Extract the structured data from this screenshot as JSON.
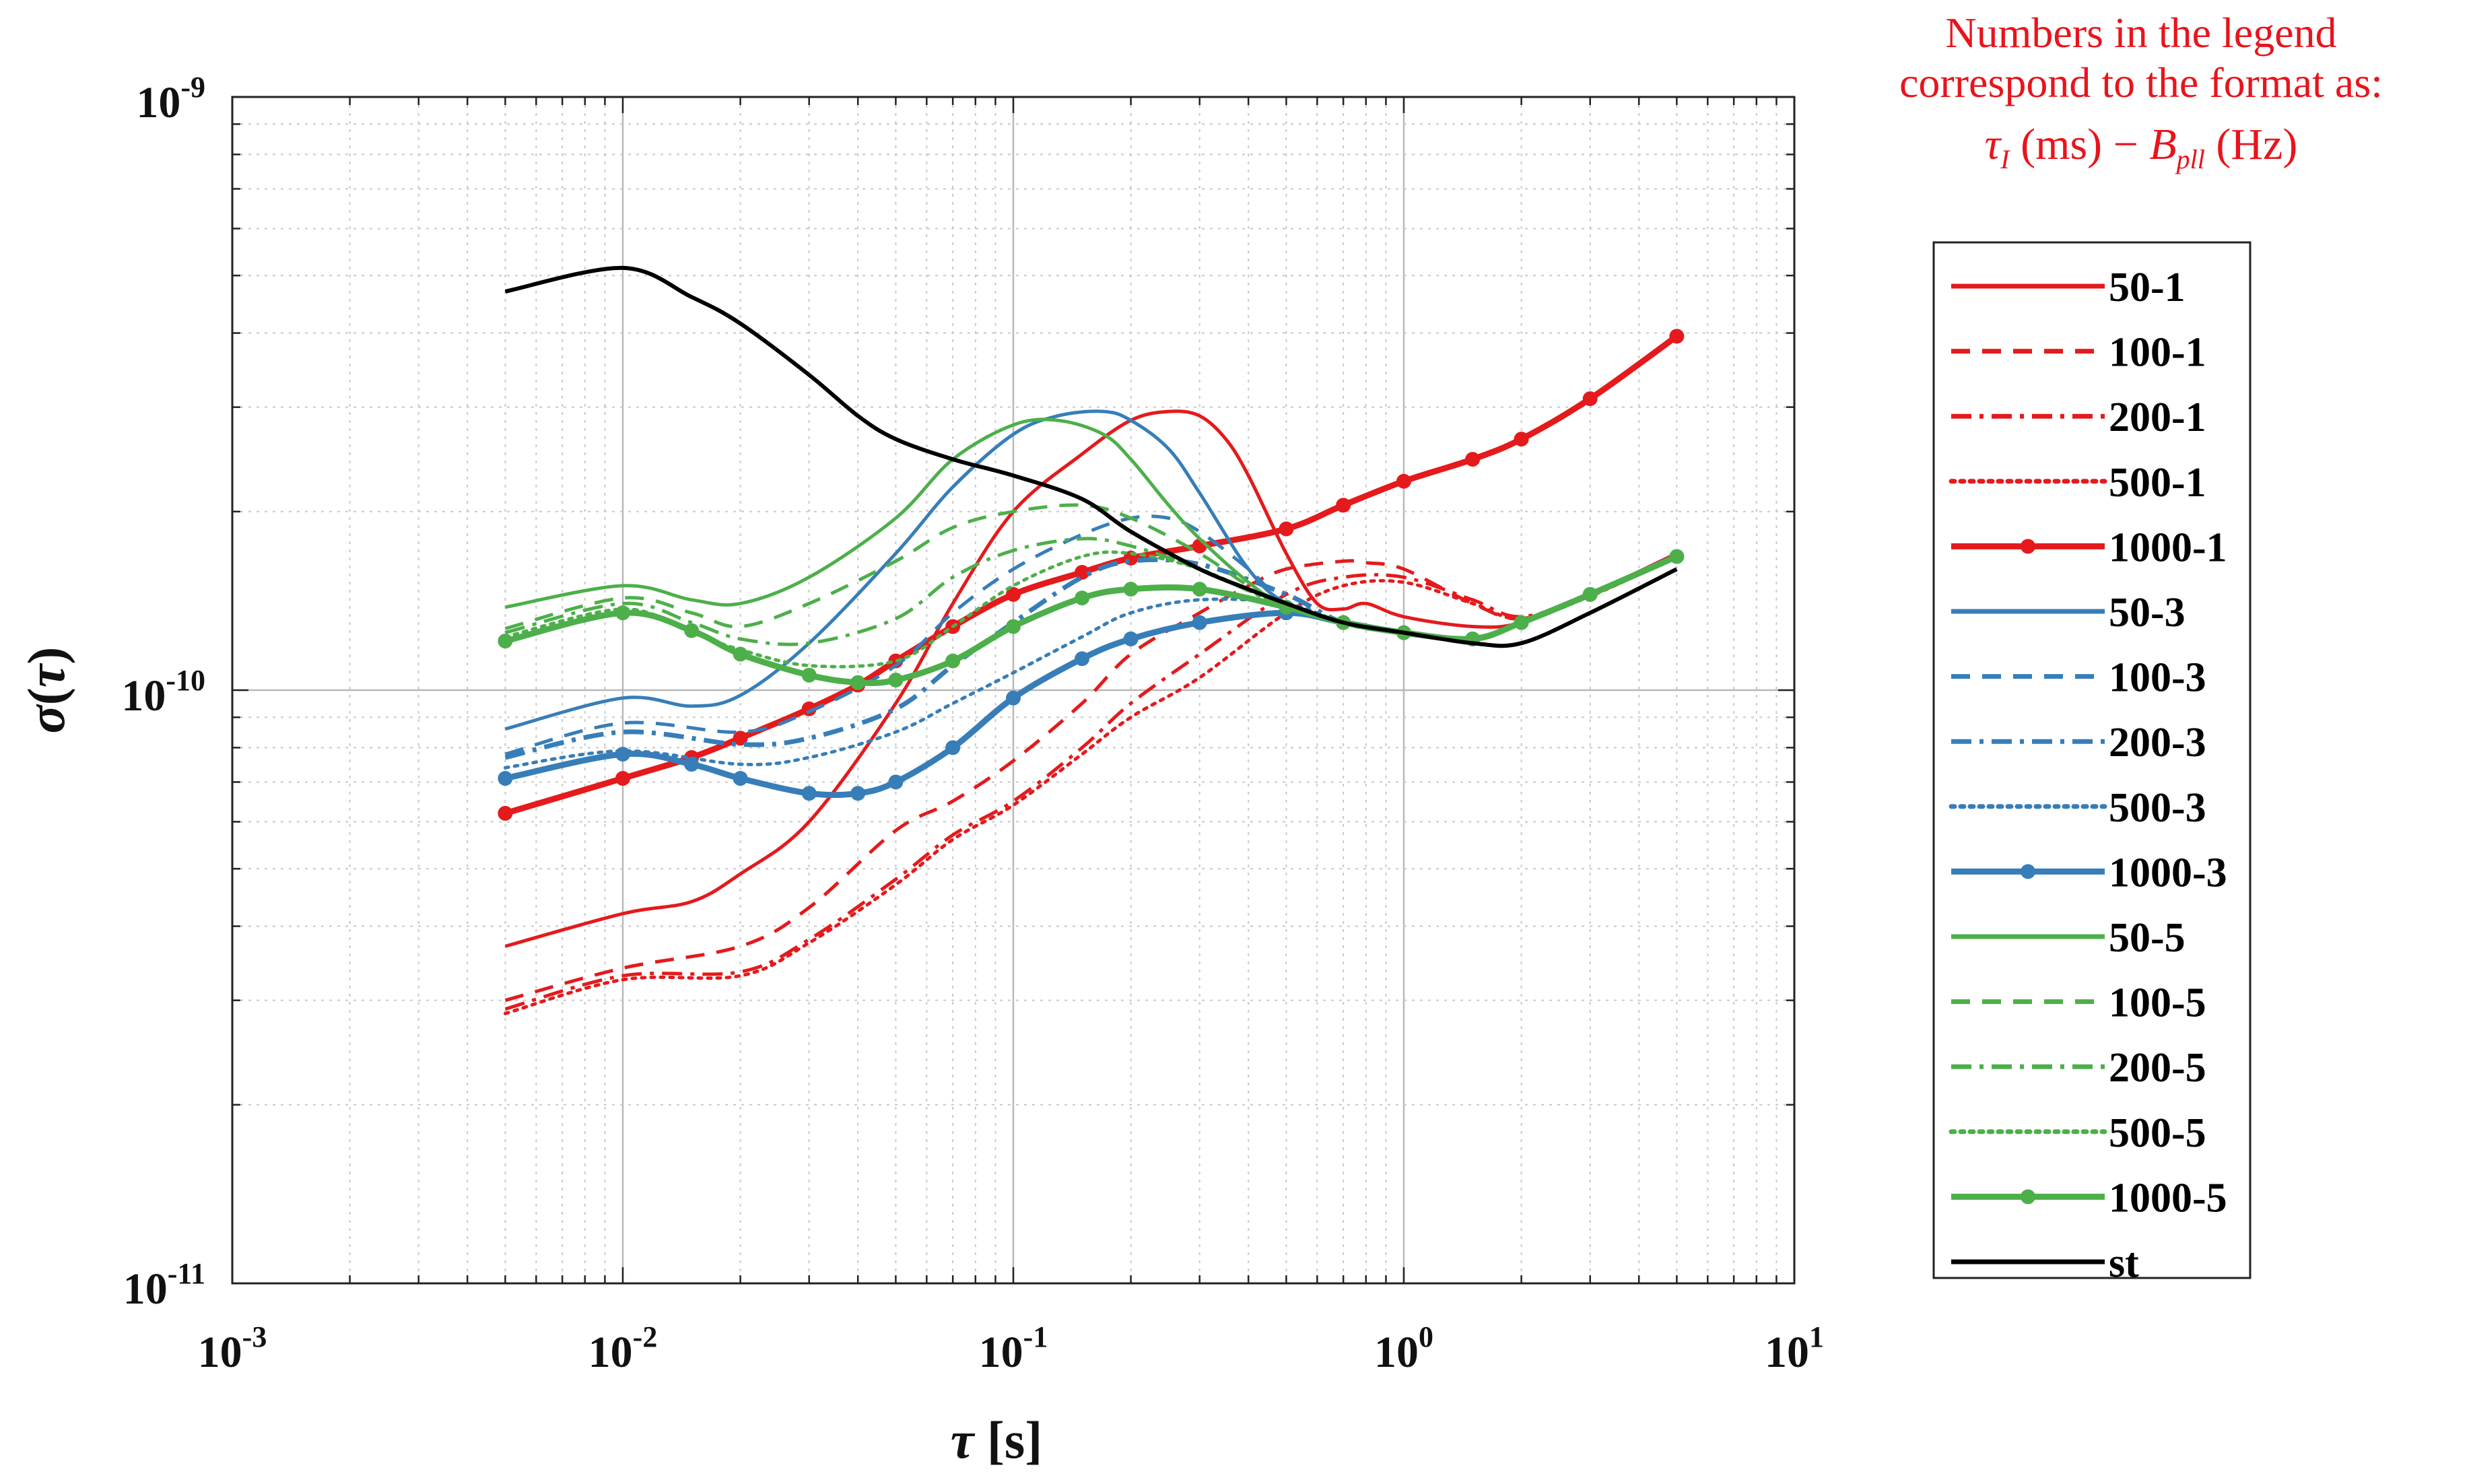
{
  "chart_data": {
    "type": "line",
    "xscale": "log",
    "yscale": "log",
    "xlim": [
      0.001,
      10
    ],
    "ylim": [
      1e-11,
      1e-09
    ],
    "xlabel": "τ [s]",
    "ylabel": "σ(τ)",
    "grid": true,
    "x_ticks": [
      {
        "value": 0.001,
        "base": "10",
        "exp": "-3"
      },
      {
        "value": 0.01,
        "base": "10",
        "exp": "-2"
      },
      {
        "value": 0.1,
        "base": "10",
        "exp": "-1"
      },
      {
        "value": 1,
        "base": "10",
        "exp": "0"
      },
      {
        "value": 10,
        "base": "10",
        "exp": "1"
      }
    ],
    "y_ticks": [
      {
        "value": 1e-11,
        "base": "10",
        "exp": "-11"
      },
      {
        "value": 1e-10,
        "base": "10",
        "exp": "-10"
      },
      {
        "value": 1e-09,
        "base": "10",
        "exp": "-9"
      }
    ],
    "legend_position": "outside-right",
    "series": [
      {
        "name": "50-1",
        "color": "#e41a1c",
        "style": "solid",
        "width": 5,
        "marker": false,
        "x": [
          0.005,
          0.01,
          0.015,
          0.02,
          0.03,
          0.05,
          0.07,
          0.1,
          0.15,
          0.2,
          0.25,
          0.3,
          0.35,
          0.4,
          0.5,
          0.6,
          0.7,
          0.8,
          1,
          1.5,
          2,
          3,
          5
        ],
        "y": [
          3.7e-11,
          4.2e-11,
          4.4e-11,
          4.9e-11,
          6e-11,
          9.5e-11,
          1.4e-10,
          2e-10,
          2.5e-10,
          2.85e-10,
          2.95e-10,
          2.9e-10,
          2.65e-10,
          2.3e-10,
          1.7e-10,
          1.4e-10,
          1.37e-10,
          1.4e-10,
          1.33e-10,
          1.28e-10,
          1.3e-10,
          1.45e-10,
          1.7e-10
        ]
      },
      {
        "name": "100-1",
        "color": "#e41a1c",
        "style": "dashed",
        "width": 5,
        "marker": false,
        "x": [
          0.005,
          0.01,
          0.02,
          0.03,
          0.05,
          0.07,
          0.1,
          0.15,
          0.2,
          0.3,
          0.4,
          0.5,
          0.7,
          0.8,
          1,
          1.5,
          2,
          3,
          5
        ],
        "y": [
          3e-11,
          3.4e-11,
          3.7e-11,
          4.3e-11,
          5.8e-11,
          6.5e-11,
          7.6e-11,
          9.5e-11,
          1.15e-10,
          1.35e-10,
          1.5e-10,
          1.6e-10,
          1.65e-10,
          1.64e-10,
          1.6e-10,
          1.4e-10,
          1.32e-10,
          1.45e-10,
          1.7e-10
        ]
      },
      {
        "name": "200-1",
        "color": "#e41a1c",
        "style": "dashdot",
        "width": 5,
        "marker": false,
        "x": [
          0.005,
          0.01,
          0.02,
          0.03,
          0.05,
          0.07,
          0.1,
          0.15,
          0.2,
          0.3,
          0.5,
          0.7,
          1,
          1.5,
          2,
          3,
          5
        ],
        "y": [
          2.9e-11,
          3.3e-11,
          3.35e-11,
          3.8e-11,
          4.8e-11,
          5.7e-11,
          6.5e-11,
          8e-11,
          9.5e-11,
          1.15e-10,
          1.45e-10,
          1.55e-10,
          1.55e-10,
          1.42e-10,
          1.33e-10,
          1.45e-10,
          1.69e-10
        ]
      },
      {
        "name": "500-1",
        "color": "#e41a1c",
        "style": "dotted",
        "width": 5,
        "marker": false,
        "x": [
          0.005,
          0.01,
          0.02,
          0.03,
          0.05,
          0.07,
          0.1,
          0.15,
          0.2,
          0.3,
          0.5,
          0.7,
          1,
          1.5,
          2,
          3,
          5
        ],
        "y": [
          2.85e-11,
          3.25e-11,
          3.3e-11,
          3.75e-11,
          4.7e-11,
          5.6e-11,
          6.4e-11,
          7.8e-11,
          9e-11,
          1.05e-10,
          1.35e-10,
          1.5e-10,
          1.52e-10,
          1.4e-10,
          1.32e-10,
          1.44e-10,
          1.68e-10
        ]
      },
      {
        "name": "1000-1",
        "color": "#e41a1c",
        "style": "solid",
        "width": 9,
        "marker": true,
        "x": [
          0.005,
          0.01,
          0.015,
          0.02,
          0.03,
          0.04,
          0.05,
          0.07,
          0.1,
          0.15,
          0.2,
          0.3,
          0.5,
          0.7,
          1,
          1.5,
          2,
          3,
          5
        ],
        "y": [
          6.2e-11,
          7.1e-11,
          7.7e-11,
          8.3e-11,
          9.3e-11,
          1.02e-10,
          1.12e-10,
          1.28e-10,
          1.45e-10,
          1.58e-10,
          1.67e-10,
          1.75e-10,
          1.87e-10,
          2.05e-10,
          2.25e-10,
          2.45e-10,
          2.65e-10,
          3.1e-10,
          3.95e-10
        ]
      },
      {
        "name": "50-3",
        "color": "#377eb8",
        "style": "solid",
        "width": 5,
        "marker": false,
        "x": [
          0.005,
          0.01,
          0.015,
          0.02,
          0.03,
          0.05,
          0.07,
          0.1,
          0.13,
          0.17,
          0.2,
          0.25,
          0.3,
          0.4,
          0.5,
          0.7,
          1,
          1.5,
          2,
          3,
          5
        ],
        "y": [
          8.6e-11,
          9.7e-11,
          9.4e-11,
          9.8e-11,
          1.2e-10,
          1.7e-10,
          2.2e-10,
          2.7e-10,
          2.9e-10,
          2.95e-10,
          2.85e-10,
          2.55e-10,
          2.15e-10,
          1.6e-10,
          1.4e-10,
          1.3e-10,
          1.25e-10,
          1.22e-10,
          1.3e-10,
          1.45e-10,
          1.68e-10
        ]
      },
      {
        "name": "100-3",
        "color": "#377eb8",
        "style": "dashed",
        "width": 5,
        "marker": false,
        "x": [
          0.005,
          0.01,
          0.02,
          0.03,
          0.05,
          0.07,
          0.1,
          0.15,
          0.2,
          0.25,
          0.3,
          0.4,
          0.5,
          0.7,
          1,
          1.5,
          2,
          3,
          5
        ],
        "y": [
          7.8e-11,
          8.8e-11,
          8.5e-11,
          9.2e-11,
          1.1e-10,
          1.35e-10,
          1.6e-10,
          1.83e-10,
          1.95e-10,
          1.95e-10,
          1.85e-10,
          1.6e-10,
          1.4e-10,
          1.3e-10,
          1.25e-10,
          1.22e-10,
          1.3e-10,
          1.45e-10,
          1.68e-10
        ]
      },
      {
        "name": "200-3",
        "color": "#377eb8",
        "style": "dashdot",
        "width": 7,
        "marker": false,
        "x": [
          0.005,
          0.01,
          0.02,
          0.03,
          0.05,
          0.07,
          0.1,
          0.15,
          0.2,
          0.3,
          0.5,
          0.7,
          1,
          1.5,
          2,
          3,
          5
        ],
        "y": [
          7.7e-11,
          8.5e-11,
          8.1e-11,
          8.3e-11,
          9.3e-11,
          1.1e-10,
          1.3e-10,
          1.55e-10,
          1.65e-10,
          1.63e-10,
          1.45e-10,
          1.3e-10,
          1.25e-10,
          1.22e-10,
          1.3e-10,
          1.45e-10,
          1.68e-10
        ]
      },
      {
        "name": "500-3",
        "color": "#377eb8",
        "style": "dotted",
        "width": 5,
        "marker": false,
        "x": [
          0.005,
          0.01,
          0.02,
          0.03,
          0.05,
          0.07,
          0.1,
          0.15,
          0.2,
          0.3,
          0.5,
          0.7,
          1,
          1.5,
          2,
          3,
          5
        ],
        "y": [
          7.4e-11,
          7.9e-11,
          7.5e-11,
          7.7e-11,
          8.5e-11,
          9.5e-11,
          1.07e-10,
          1.23e-10,
          1.35e-10,
          1.42e-10,
          1.4e-10,
          1.3e-10,
          1.25e-10,
          1.22e-10,
          1.3e-10,
          1.45e-10,
          1.68e-10
        ]
      },
      {
        "name": "1000-3",
        "color": "#377eb8",
        "style": "solid",
        "width": 9,
        "marker": true,
        "x": [
          0.005,
          0.01,
          0.015,
          0.02,
          0.03,
          0.04,
          0.05,
          0.07,
          0.1,
          0.15,
          0.2,
          0.3,
          0.5,
          0.7,
          1,
          1.5,
          2,
          3,
          5
        ],
        "y": [
          7.1e-11,
          7.8e-11,
          7.5e-11,
          7.1e-11,
          6.7e-11,
          6.7e-11,
          7e-11,
          8e-11,
          9.7e-11,
          1.13e-10,
          1.22e-10,
          1.3e-10,
          1.35e-10,
          1.3e-10,
          1.25e-10,
          1.22e-10,
          1.3e-10,
          1.45e-10,
          1.68e-10
        ]
      },
      {
        "name": "50-5",
        "color": "#4daf4a",
        "style": "solid",
        "width": 5,
        "marker": false,
        "x": [
          0.005,
          0.01,
          0.015,
          0.02,
          0.03,
          0.05,
          0.07,
          0.1,
          0.13,
          0.17,
          0.2,
          0.25,
          0.3,
          0.4,
          0.5,
          0.7,
          1,
          1.5,
          2,
          3,
          5
        ],
        "y": [
          1.38e-10,
          1.5e-10,
          1.42e-10,
          1.4e-10,
          1.55e-10,
          1.95e-10,
          2.45e-10,
          2.8e-10,
          2.85e-10,
          2.7e-10,
          2.45e-10,
          2.05e-10,
          1.8e-10,
          1.52e-10,
          1.38e-10,
          1.3e-10,
          1.25e-10,
          1.22e-10,
          1.3e-10,
          1.45e-10,
          1.68e-10
        ]
      },
      {
        "name": "100-5",
        "color": "#4daf4a",
        "style": "dashed",
        "width": 5,
        "marker": false,
        "x": [
          0.005,
          0.01,
          0.015,
          0.02,
          0.03,
          0.05,
          0.07,
          0.1,
          0.15,
          0.2,
          0.3,
          0.4,
          0.5,
          0.7,
          1,
          1.5,
          2,
          3,
          5
        ],
        "y": [
          1.27e-10,
          1.43e-10,
          1.35e-10,
          1.28e-10,
          1.4e-10,
          1.65e-10,
          1.88e-10,
          2e-10,
          2.05e-10,
          1.95e-10,
          1.7e-10,
          1.5e-10,
          1.4e-10,
          1.3e-10,
          1.25e-10,
          1.22e-10,
          1.3e-10,
          1.45e-10,
          1.68e-10
        ]
      },
      {
        "name": "200-5",
        "color": "#4daf4a",
        "style": "dashdot",
        "width": 5,
        "marker": false,
        "x": [
          0.005,
          0.01,
          0.015,
          0.02,
          0.03,
          0.05,
          0.07,
          0.1,
          0.15,
          0.2,
          0.3,
          0.5,
          0.7,
          1,
          1.5,
          2,
          3,
          5
        ],
        "y": [
          1.25e-10,
          1.4e-10,
          1.3e-10,
          1.22e-10,
          1.2e-10,
          1.32e-10,
          1.55e-10,
          1.72e-10,
          1.8e-10,
          1.75e-10,
          1.6e-10,
          1.38e-10,
          1.3e-10,
          1.25e-10,
          1.22e-10,
          1.3e-10,
          1.45e-10,
          1.68e-10
        ]
      },
      {
        "name": "500-5",
        "color": "#4daf4a",
        "style": "dotted",
        "width": 5,
        "marker": false,
        "x": [
          0.005,
          0.01,
          0.015,
          0.02,
          0.03,
          0.05,
          0.07,
          0.1,
          0.15,
          0.2,
          0.3,
          0.5,
          0.7,
          1,
          1.5,
          2,
          3,
          5
        ],
        "y": [
          1.23e-10,
          1.37e-10,
          1.25e-10,
          1.17e-10,
          1.1e-10,
          1.12e-10,
          1.28e-10,
          1.5e-10,
          1.68e-10,
          1.7e-10,
          1.6e-10,
          1.38e-10,
          1.3e-10,
          1.25e-10,
          1.22e-10,
          1.3e-10,
          1.45e-10,
          1.68e-10
        ]
      },
      {
        "name": "1000-5",
        "color": "#4daf4a",
        "style": "solid",
        "width": 9,
        "marker": true,
        "x": [
          0.005,
          0.01,
          0.015,
          0.02,
          0.03,
          0.04,
          0.05,
          0.07,
          0.1,
          0.15,
          0.2,
          0.3,
          0.5,
          0.7,
          1,
          1.5,
          2,
          3,
          5
        ],
        "y": [
          1.21e-10,
          1.35e-10,
          1.26e-10,
          1.15e-10,
          1.06e-10,
          1.03e-10,
          1.04e-10,
          1.12e-10,
          1.28e-10,
          1.43e-10,
          1.48e-10,
          1.48e-10,
          1.38e-10,
          1.3e-10,
          1.25e-10,
          1.22e-10,
          1.3e-10,
          1.45e-10,
          1.68e-10
        ]
      },
      {
        "name": "st",
        "color": "#000000",
        "style": "solid",
        "width": 6,
        "marker": false,
        "x": [
          0.005,
          0.01,
          0.015,
          0.02,
          0.03,
          0.04,
          0.05,
          0.07,
          0.1,
          0.15,
          0.2,
          0.3,
          0.4,
          0.5,
          0.7,
          1,
          1.5,
          2,
          3,
          5
        ],
        "y": [
          4.7e-10,
          5.15e-10,
          4.6e-10,
          4.15e-10,
          3.4e-10,
          2.9e-10,
          2.65e-10,
          2.45e-10,
          2.3e-10,
          2.1e-10,
          1.85e-10,
          1.6e-10,
          1.48e-10,
          1.4e-10,
          1.3e-10,
          1.25e-10,
          1.2e-10,
          1.2e-10,
          1.35e-10,
          1.6e-10
        ]
      }
    ]
  },
  "annotation": {
    "line1": "Numbers in the legend",
    "line2": "correspond to the format as:",
    "tau": "τ",
    "tau_sub": "I",
    "ms": "(ms)",
    "minus": "−",
    "B": "B",
    "B_sub": "pll",
    "hz": "(Hz)"
  }
}
